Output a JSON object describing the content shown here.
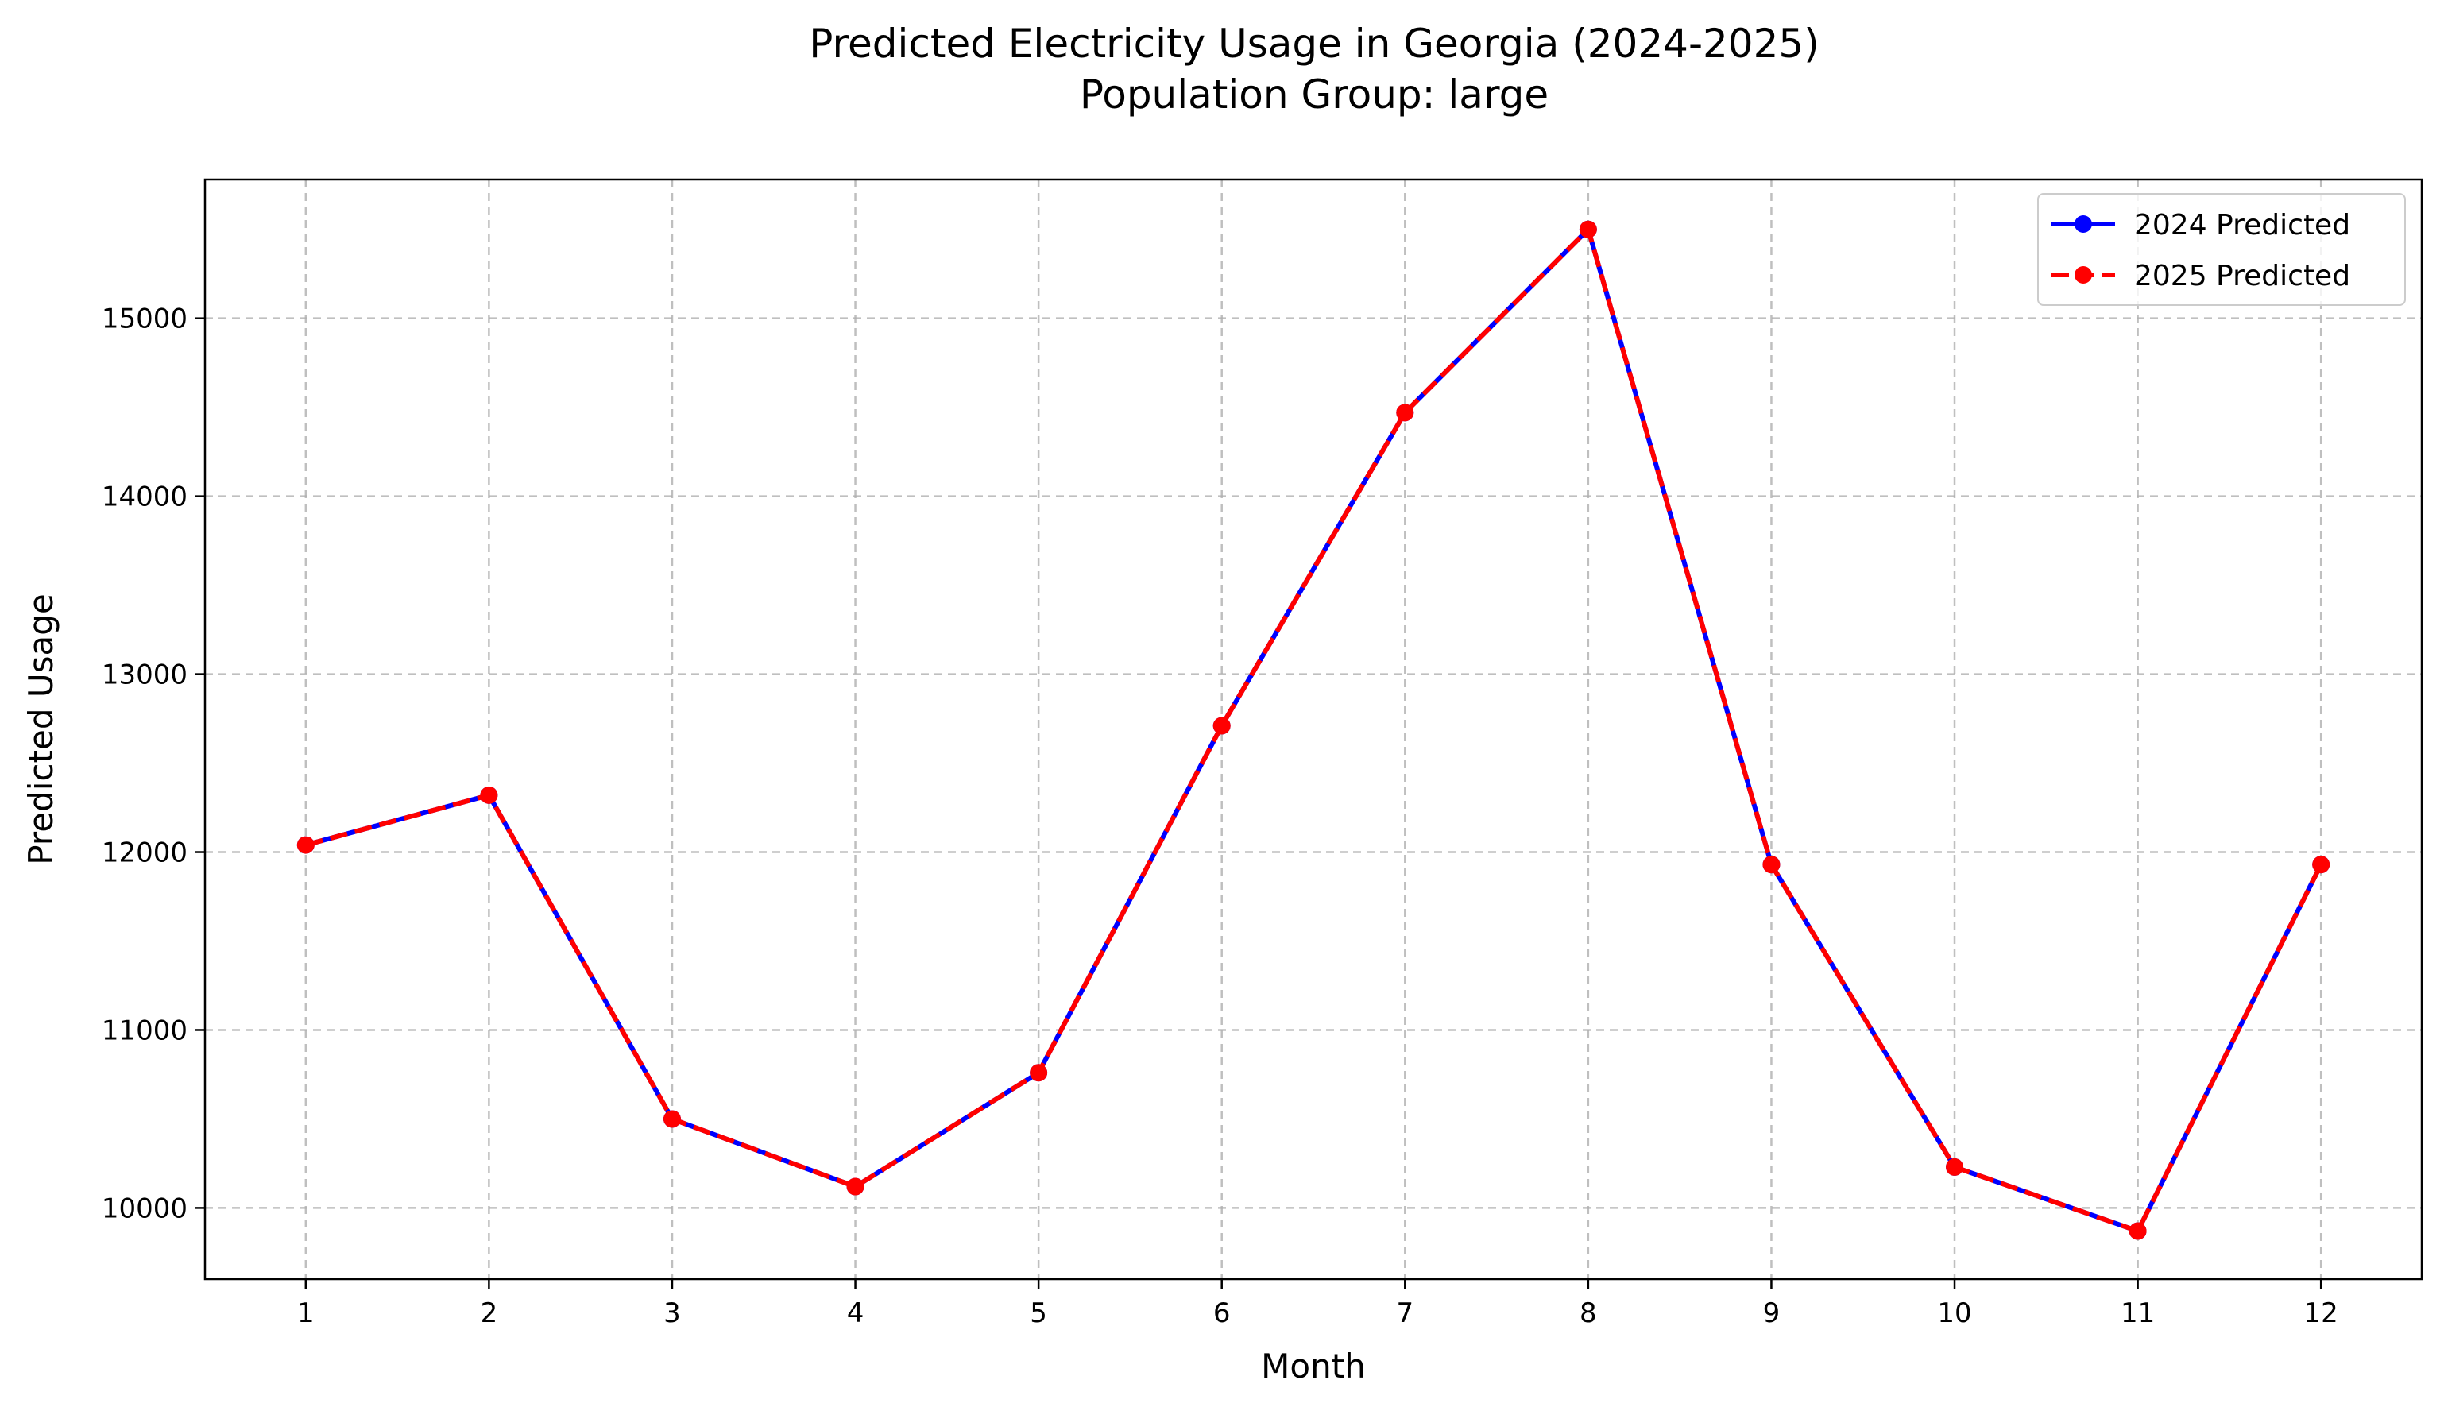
{
  "chart_data": {
    "type": "line",
    "title": "Predicted Electricity Usage in Georgia (2024-2025)",
    "subtitle": "Population Group: large",
    "xlabel": "Month",
    "ylabel": "Predicted Usage",
    "x": [
      1,
      2,
      3,
      4,
      5,
      6,
      7,
      8,
      9,
      10,
      11,
      12
    ],
    "xlim": [
      0.45,
      12.55
    ],
    "ylim": [
      9600,
      15780
    ],
    "yticks": [
      10000,
      11000,
      12000,
      13000,
      14000,
      15000
    ],
    "grid": true,
    "legend_position": "top-right",
    "series": [
      {
        "name": "2024 Predicted",
        "color": "#0000ff",
        "line_style": "solid",
        "marker": "circle",
        "values": [
          12040,
          12320,
          10500,
          10120,
          10760,
          12710,
          14470,
          15500,
          11930,
          10230,
          9870,
          11930
        ]
      },
      {
        "name": "2025 Predicted",
        "color": "#ff0000",
        "line_style": "dashed",
        "marker": "circle",
        "values": [
          12040,
          12320,
          10500,
          10120,
          10760,
          12710,
          14470,
          15500,
          11930,
          10230,
          9870,
          11930
        ]
      }
    ]
  }
}
